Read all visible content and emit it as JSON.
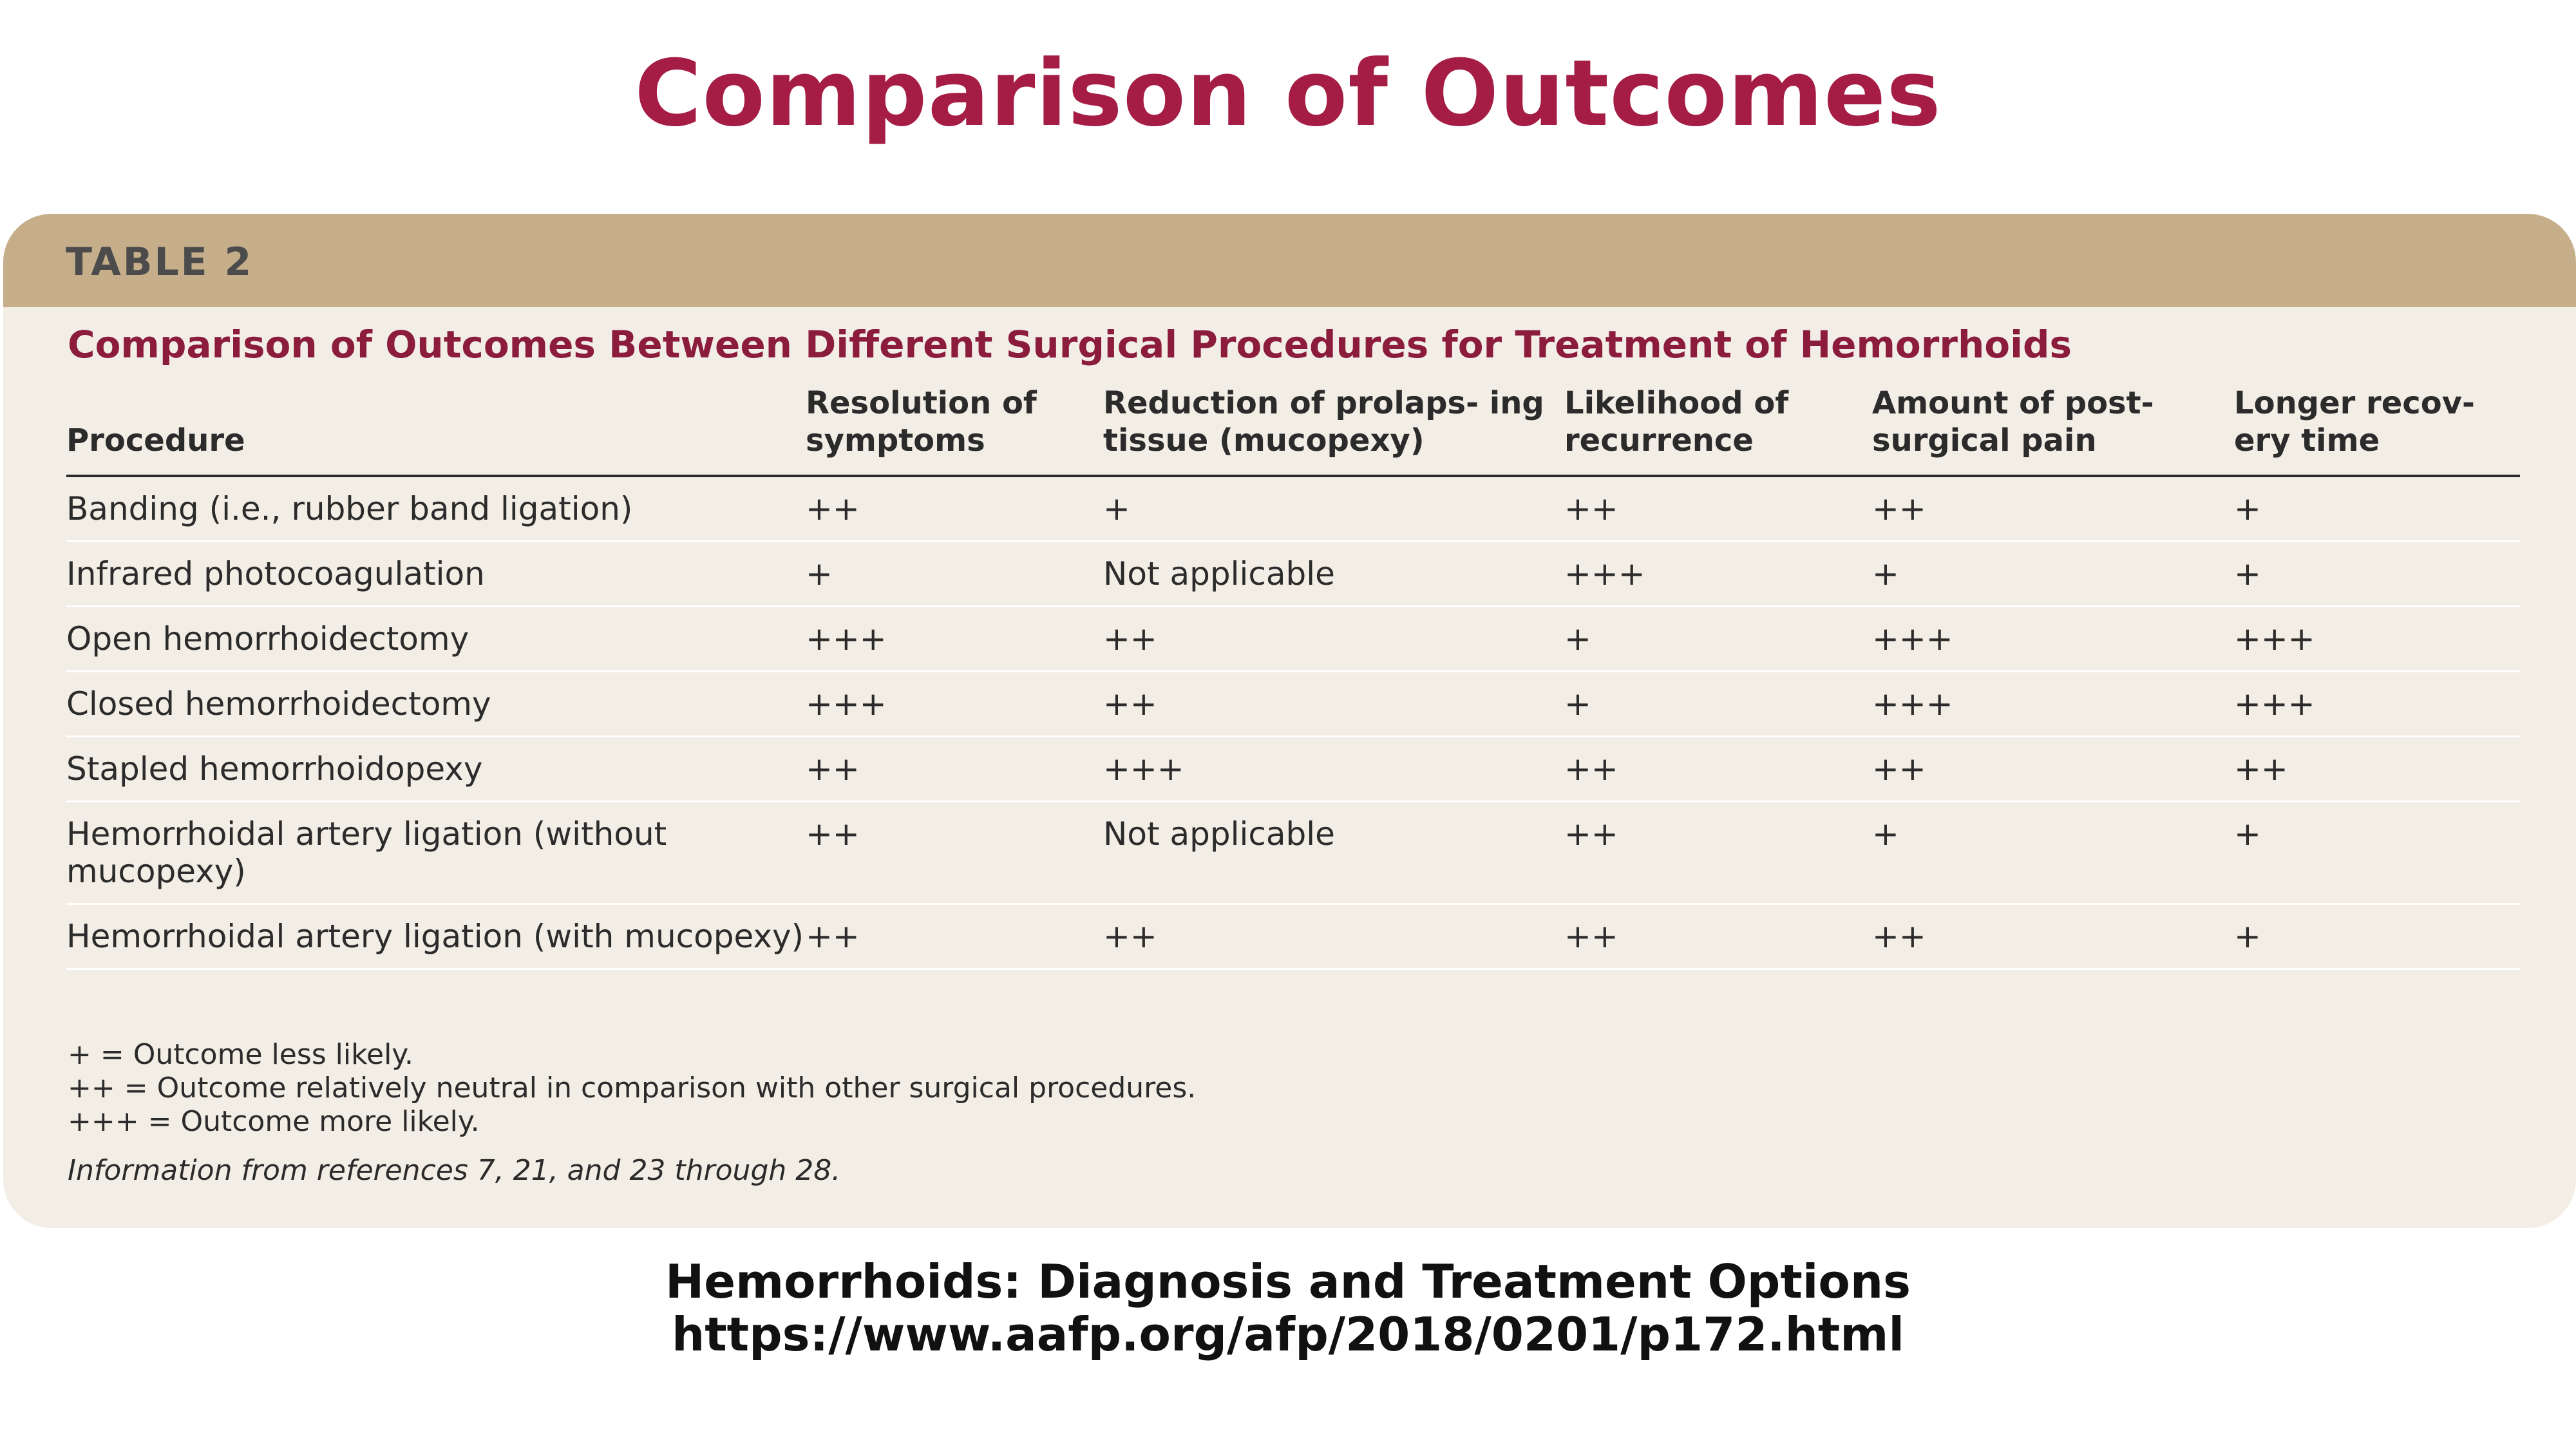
{
  "slide": {
    "title": "Comparison of Outcomes"
  },
  "card": {
    "label": "TABLE 2",
    "caption": "Comparison of Outcomes Between Different Surgical Procedures for Treatment of Hemorrhoids"
  },
  "table": {
    "headers": [
      "Procedure",
      "Resolution of symptoms",
      "Reduction of prolaps- ing tissue (mucopexy)",
      "Likelihood of recurrence",
      "Amount of post- surgical pain",
      "Longer recov- ery time"
    ],
    "rows": [
      [
        "Banding (i.e., rubber band ligation)",
        "++",
        "+",
        "++",
        "++",
        "+"
      ],
      [
        "Infrared photocoagulation",
        "+",
        "Not applicable",
        "+++",
        "+",
        "+"
      ],
      [
        "Open hemorrhoidectomy",
        "+++",
        "++",
        "+",
        "+++",
        "+++"
      ],
      [
        "Closed hemorrhoidectomy",
        "+++",
        "++",
        "+",
        "+++",
        "+++"
      ],
      [
        "Stapled hemorrhoidopexy",
        "++",
        "+++",
        "++",
        "++",
        "++"
      ],
      [
        "Hemorrhoidal artery ligation (without mucopexy)",
        "++",
        "Not applicable",
        "++",
        "+",
        "+"
      ],
      [
        "Hemorrhoidal artery ligation (with mucopexy)",
        "++",
        "++",
        "++",
        "++",
        "+"
      ]
    ]
  },
  "footnotes": {
    "legend": [
      "+ = Outcome less likely.",
      "++ = Outcome relatively neutral in comparison with other surgical procedures.",
      "+++ = Outcome more likely."
    ],
    "source": "Information from references 7, 21, and 23 through 28."
  },
  "citation": {
    "title": "Hemorrhoids: Diagnosis and Treatment Options",
    "url": "https://www.aafp.org/afp/2018/0201/p172.html"
  },
  "colors": {
    "title": "#a51d45",
    "caption": "#8c1c3b",
    "header_band": "#c6ae8a",
    "card_background": "#f2eee6"
  }
}
